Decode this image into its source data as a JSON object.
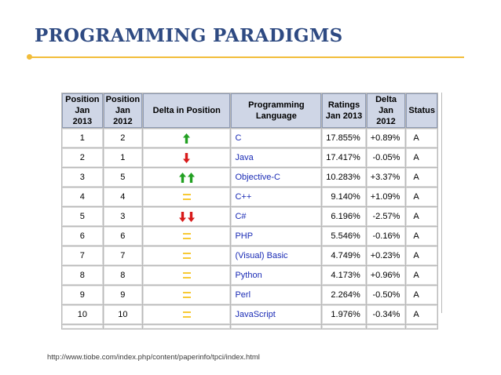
{
  "slide": {
    "title": "PROGRAMMING PARADIGMS",
    "source": "http://www.tiobe.com/index.php/content/paperinfo/tpci/index.html"
  },
  "colors": {
    "title": "#2e4a82",
    "rule": "#f2bd3a",
    "arrow_up": "#22a022",
    "arrow_down": "#d81a1a",
    "equal": "#f7c935",
    "language_link": "#1a2bb5"
  },
  "table": {
    "headers": {
      "pos2013_line1": "Position",
      "pos2013_line2": "Jan 2013",
      "pos2012_line1": "Position",
      "pos2012_line2": "Jan 2012",
      "delta_position": "Delta in Position",
      "language": "Programming Language",
      "ratings_line1": "Ratings",
      "ratings_line2": "Jan 2013",
      "delta_line1": "Delta",
      "delta_line2": "Jan 2012",
      "status": "Status"
    },
    "rows": [
      {
        "pos2013": "1",
        "pos2012": "2",
        "delta_icon": "arrow-up-icon",
        "language": "C",
        "rating": "17.855%",
        "delta": "+0.89%",
        "status": "A"
      },
      {
        "pos2013": "2",
        "pos2012": "1",
        "delta_icon": "arrow-down-icon",
        "language": "Java",
        "rating": "17.417%",
        "delta": "-0.05%",
        "status": "A"
      },
      {
        "pos2013": "3",
        "pos2012": "5",
        "delta_icon": "double-arrow-up-icon",
        "language": "Objective-C",
        "rating": "10.283%",
        "delta": "+3.37%",
        "status": "A"
      },
      {
        "pos2013": "4",
        "pos2012": "4",
        "delta_icon": "equal-icon",
        "language": "C++",
        "rating": "9.140%",
        "delta": "+1.09%",
        "status": "A"
      },
      {
        "pos2013": "5",
        "pos2012": "3",
        "delta_icon": "double-arrow-down-icon",
        "language": "C#",
        "rating": "6.196%",
        "delta": "-2.57%",
        "status": "A"
      },
      {
        "pos2013": "6",
        "pos2012": "6",
        "delta_icon": "equal-icon",
        "language": "PHP",
        "rating": "5.546%",
        "delta": "-0.16%",
        "status": "A"
      },
      {
        "pos2013": "7",
        "pos2012": "7",
        "delta_icon": "equal-icon",
        "language": "(Visual) Basic",
        "rating": "4.749%",
        "delta": "+0.23%",
        "status": "A"
      },
      {
        "pos2013": "8",
        "pos2012": "8",
        "delta_icon": "equal-icon",
        "language": "Python",
        "rating": "4.173%",
        "delta": "+0.96%",
        "status": "A"
      },
      {
        "pos2013": "9",
        "pos2012": "9",
        "delta_icon": "equal-icon",
        "language": "Perl",
        "rating": "2.264%",
        "delta": "-0.50%",
        "status": "A"
      },
      {
        "pos2013": "10",
        "pos2012": "10",
        "delta_icon": "equal-icon",
        "language": "JavaScript",
        "rating": "1.976%",
        "delta": "-0.34%",
        "status": "A"
      }
    ]
  }
}
